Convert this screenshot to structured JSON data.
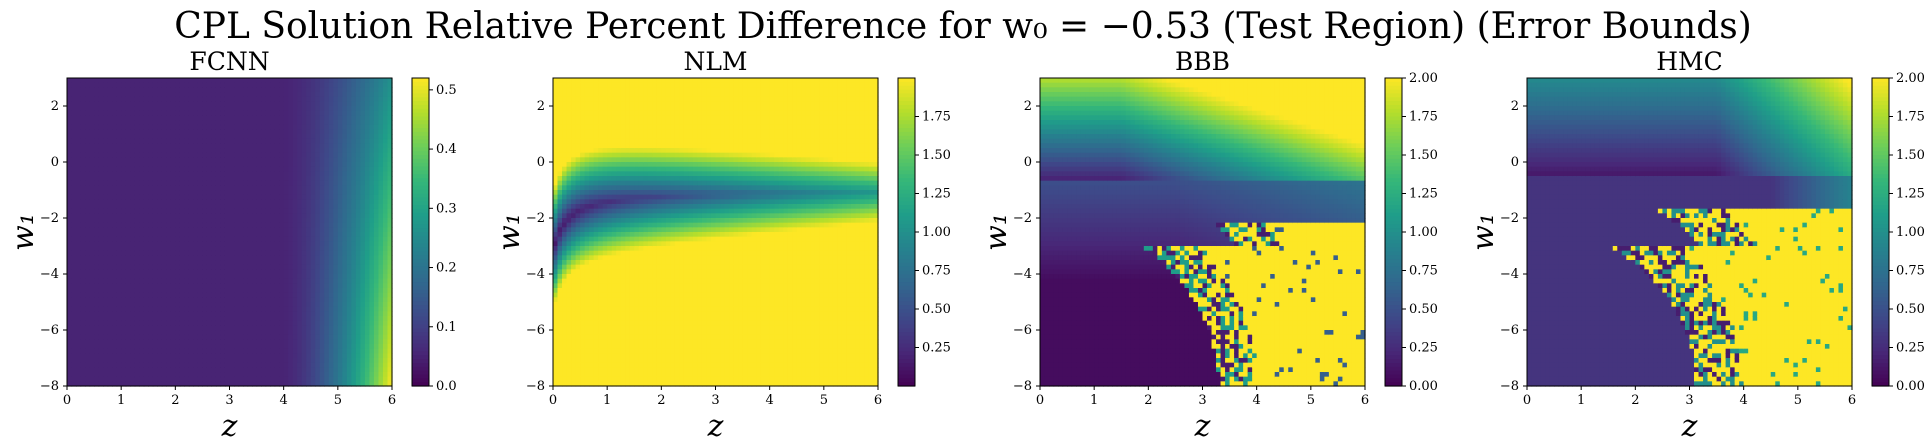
{
  "title": "CPL Solution Relative Percent Difference for w₀ = −0.53 (Test Region) (Error Bounds)",
  "colormap": [
    "#440154",
    "#482878",
    "#3e4989",
    "#31688e",
    "#26828e",
    "#1f9e89",
    "#35b779",
    "#6ece58",
    "#b5de2b",
    "#fde725"
  ],
  "chart_data": [
    {
      "type": "heatmap",
      "title": "FCNN",
      "xlabel": "z",
      "ylabel": "w₁",
      "xlim": [
        0,
        6
      ],
      "ylim": [
        -8,
        3
      ],
      "xticks": [
        "0",
        "1",
        "2",
        "3",
        "4",
        "5",
        "6"
      ],
      "yticks": [
        "2",
        "0",
        "−2",
        "−4",
        "−6",
        "−8"
      ],
      "colorbar": {
        "min": 0.0,
        "max": 0.52,
        "ticks": [
          "0.0",
          "0.1",
          "0.2",
          "0.3",
          "0.4",
          "0.5"
        ]
      }
    },
    {
      "type": "heatmap",
      "title": "NLM",
      "xlabel": "z",
      "ylabel": "w₁",
      "xlim": [
        0,
        6
      ],
      "ylim": [
        -8,
        3
      ],
      "xticks": [
        "0",
        "1",
        "2",
        "3",
        "4",
        "5",
        "6"
      ],
      "yticks": [
        "2",
        "0",
        "−2",
        "−4",
        "−6",
        "−8"
      ],
      "colorbar": {
        "min": 0.0,
        "max": 2.0,
        "ticks": [
          "0.25",
          "0.50",
          "0.75",
          "1.00",
          "1.25",
          "1.50",
          "1.75"
        ]
      }
    },
    {
      "type": "heatmap",
      "title": "BBB",
      "xlabel": "z",
      "ylabel": "w₁",
      "xlim": [
        0,
        6
      ],
      "ylim": [
        -8,
        3
      ],
      "xticks": [
        "0",
        "1",
        "2",
        "3",
        "4",
        "5",
        "6"
      ],
      "yticks": [
        "2",
        "0",
        "−2",
        "−4",
        "−6",
        "−8"
      ],
      "colorbar": {
        "min": 0.0,
        "max": 2.0,
        "ticks": [
          "0.00",
          "0.25",
          "0.50",
          "0.75",
          "1.00",
          "1.25",
          "1.50",
          "1.75",
          "2.00"
        ]
      }
    },
    {
      "type": "heatmap",
      "title": "HMC",
      "xlabel": "z",
      "ylabel": "w₁",
      "xlim": [
        0,
        6
      ],
      "ylim": [
        -8,
        3
      ],
      "xticks": [
        "0",
        "1",
        "2",
        "3",
        "4",
        "5",
        "6"
      ],
      "yticks": [
        "2",
        "0",
        "−2",
        "−4",
        "−6",
        "−8"
      ],
      "colorbar": {
        "min": 0.0,
        "max": 2.0,
        "ticks": [
          "0.00",
          "0.25",
          "0.50",
          "0.75",
          "1.00",
          "1.25",
          "1.50",
          "1.75",
          "2.00"
        ]
      }
    }
  ]
}
